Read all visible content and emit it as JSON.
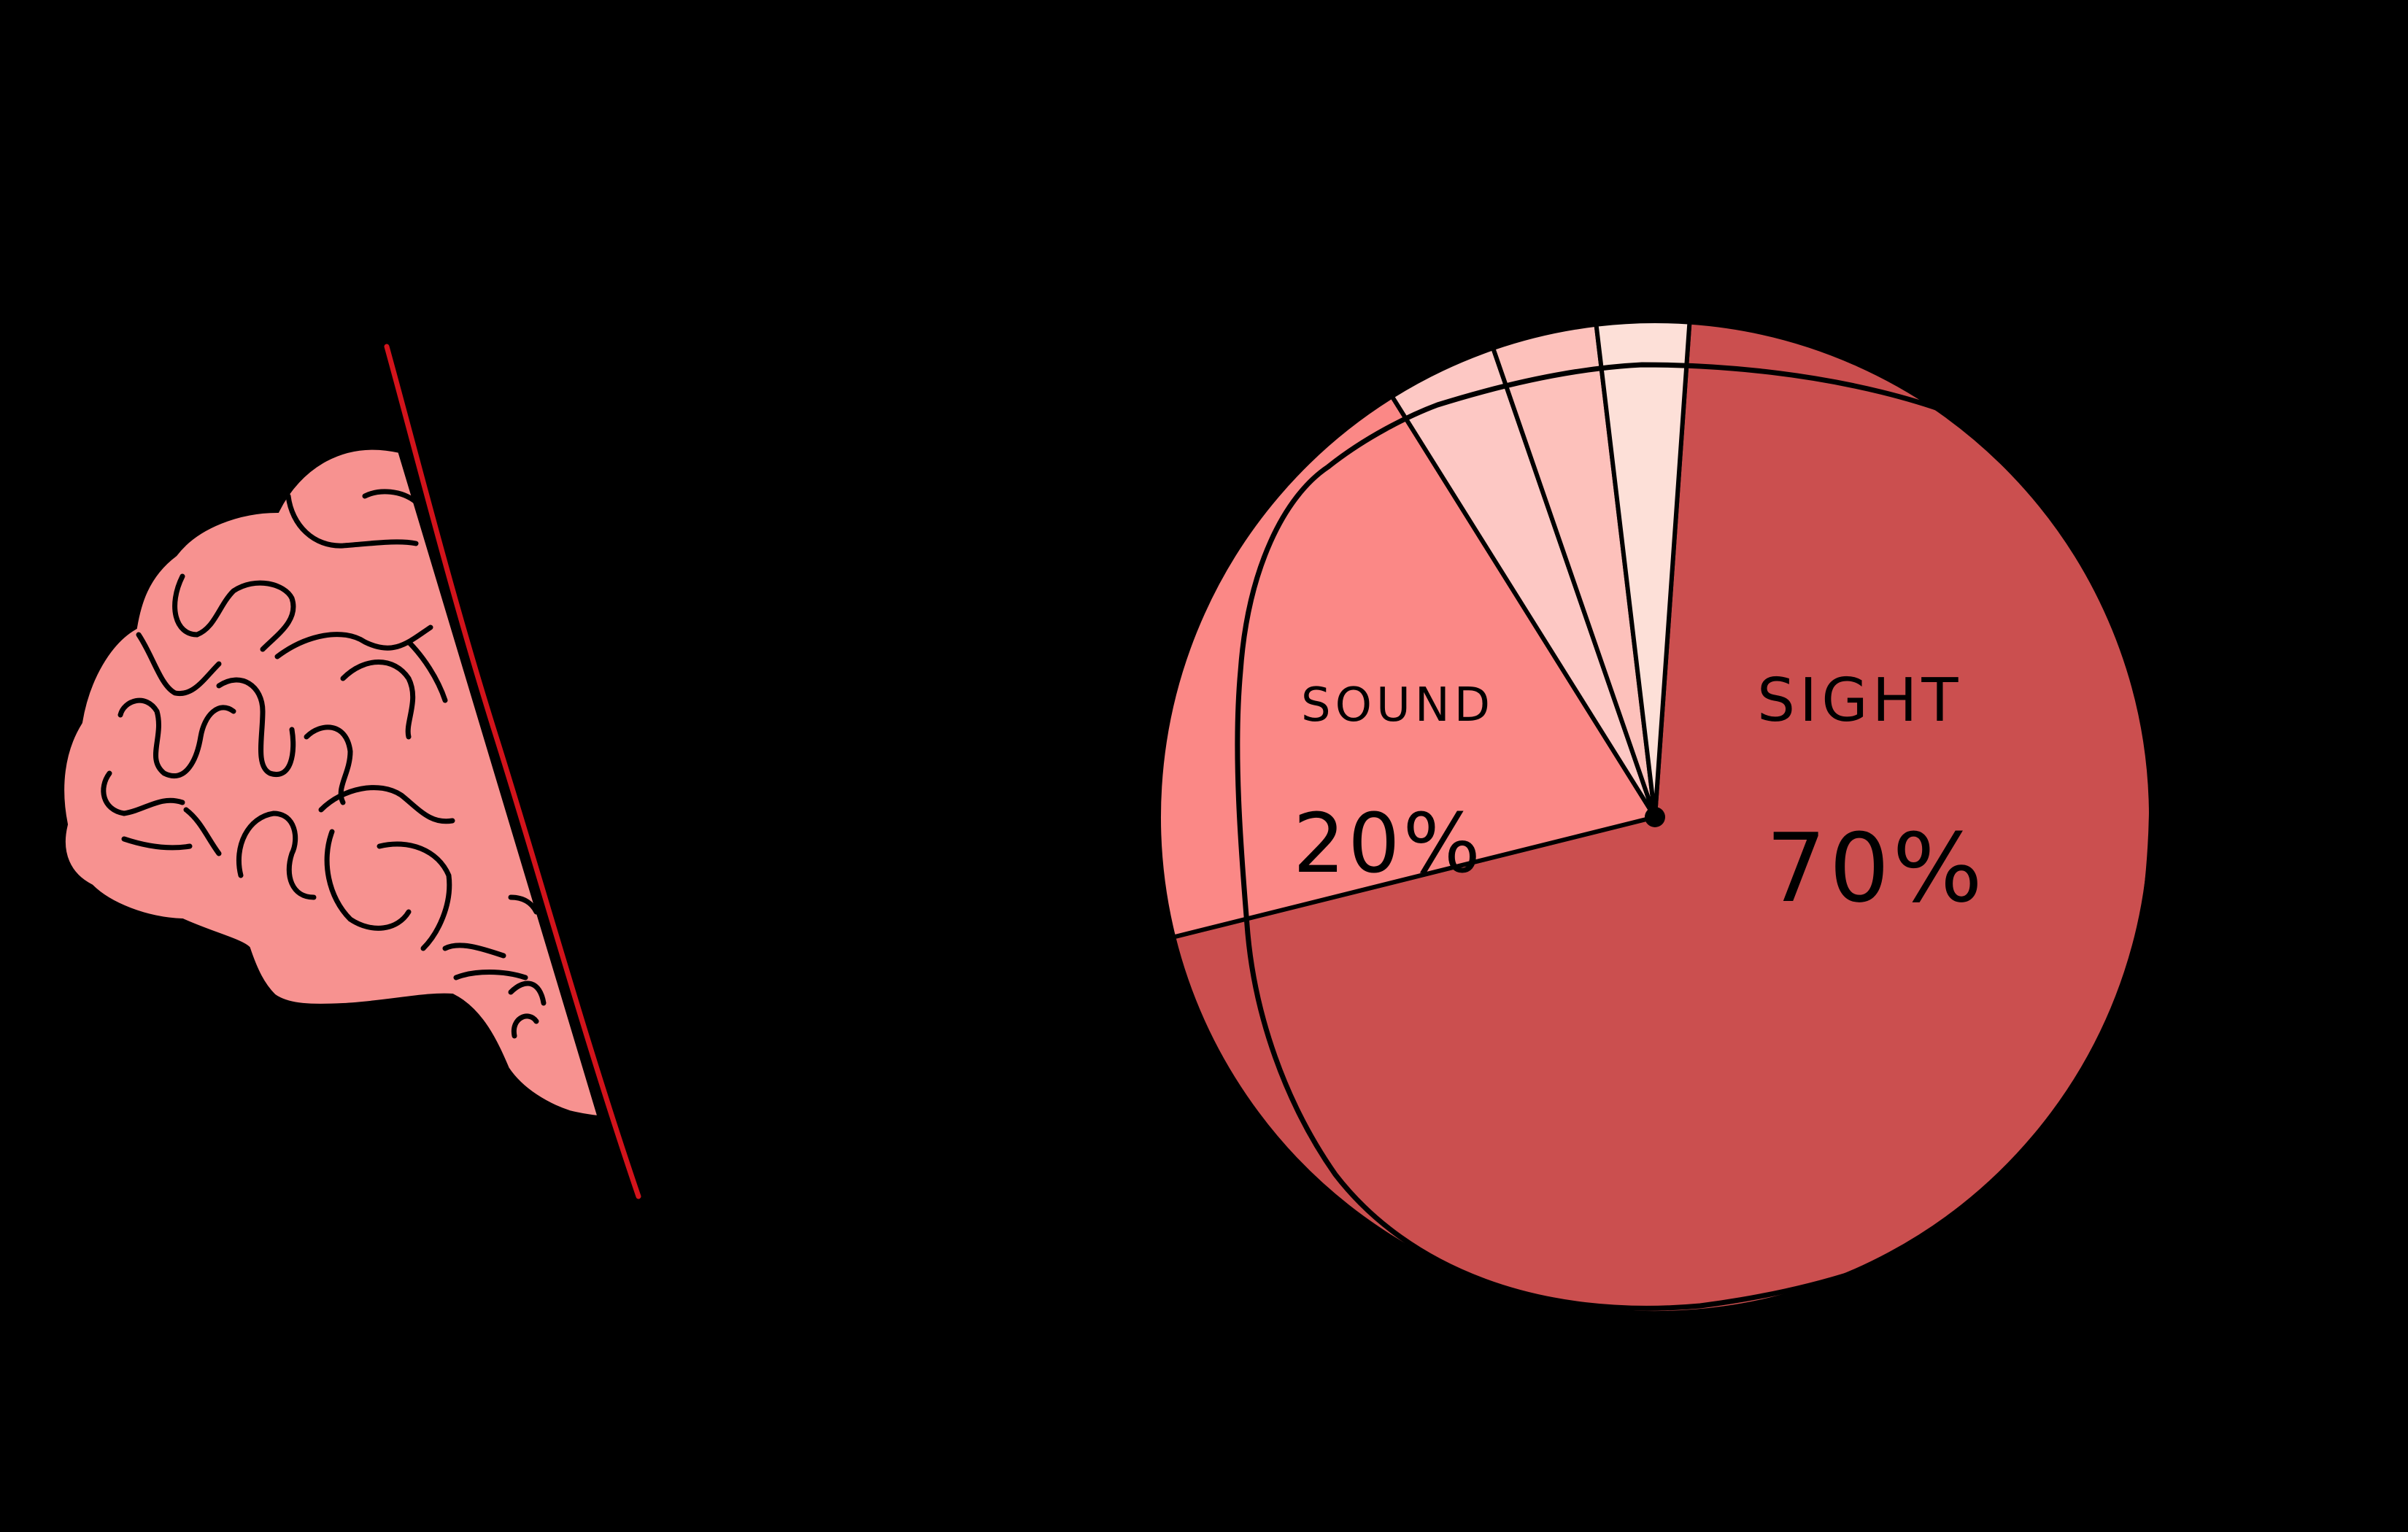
{
  "colors": {
    "background": "#000000",
    "brain_fill": "#f79290",
    "brain_cut_line": "#d3131b",
    "outline": "#000000",
    "sight": "#cb4f4f",
    "sound": "#fb8886",
    "minor_1": "#fdc8c4",
    "minor_2": "#fdc1bb",
    "minor_3": "#fde0d8"
  },
  "illustration": {
    "icon": "brain-icon"
  },
  "chart_data": {
    "type": "pie",
    "title": "",
    "slices": [
      {
        "label": "SIGHT",
        "value": 70,
        "value_label": "70%",
        "color": "#cb4f4f"
      },
      {
        "label": "SOUND",
        "value": 20,
        "value_label": "20%",
        "color": "#fb8886"
      },
      {
        "label": "",
        "value": 3.6,
        "value_label": "",
        "color": "#fdc8c4"
      },
      {
        "label": "",
        "value": 3.4,
        "value_label": "",
        "color": "#fdc1bb"
      },
      {
        "label": "",
        "value": 3.0,
        "value_label": "",
        "color": "#fde0d8"
      }
    ],
    "legend": "none"
  }
}
